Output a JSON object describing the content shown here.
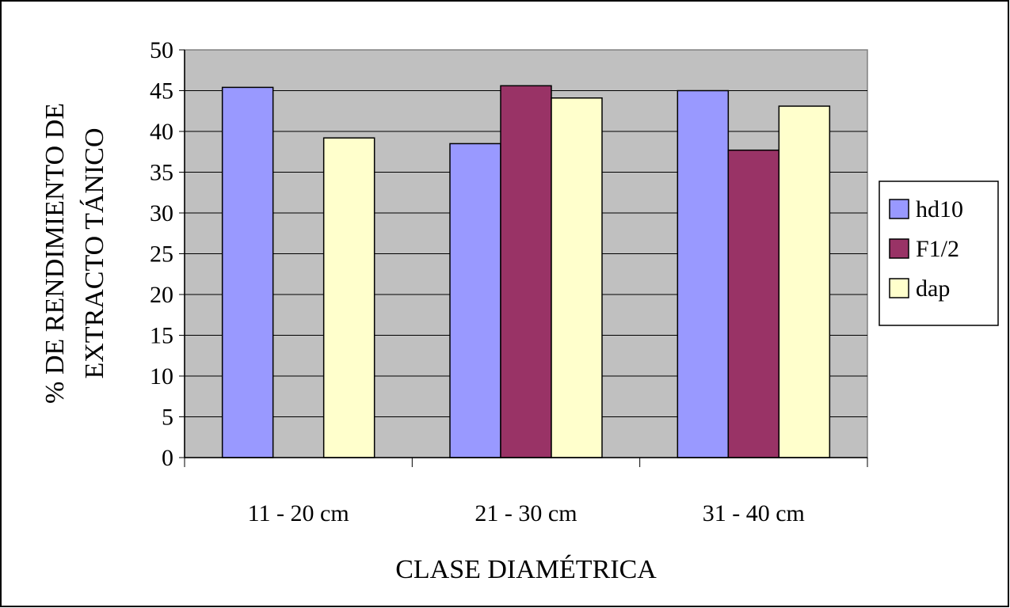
{
  "chart_data": {
    "type": "bar",
    "title": "",
    "xlabel": "CLASE DIAMÉTRICA",
    "ylabel_lines": [
      "% DE RENDIMIENTO DE",
      "EXTRACTO TÁNICO"
    ],
    "ylim": [
      0,
      50
    ],
    "yticks": [
      "0",
      "5",
      "10",
      "15",
      "20",
      "25",
      "30",
      "35",
      "40",
      "45",
      "50"
    ],
    "categories": [
      "11 - 20 cm",
      "21 - 30 cm",
      "31 - 40 cm"
    ],
    "grid": true,
    "legend_position": "right",
    "series": [
      {
        "name": "hd10",
        "color": "#9999ff",
        "values": [
          45.4,
          38.5,
          45.0
        ]
      },
      {
        "name": "F1/2",
        "color": "#993366",
        "values": [
          null,
          45.6,
          37.7
        ]
      },
      {
        "name": "dap",
        "color": "#ffffcc",
        "values": [
          39.2,
          44.1,
          43.1
        ]
      }
    ],
    "plot_background": "#c0c0c0"
  }
}
